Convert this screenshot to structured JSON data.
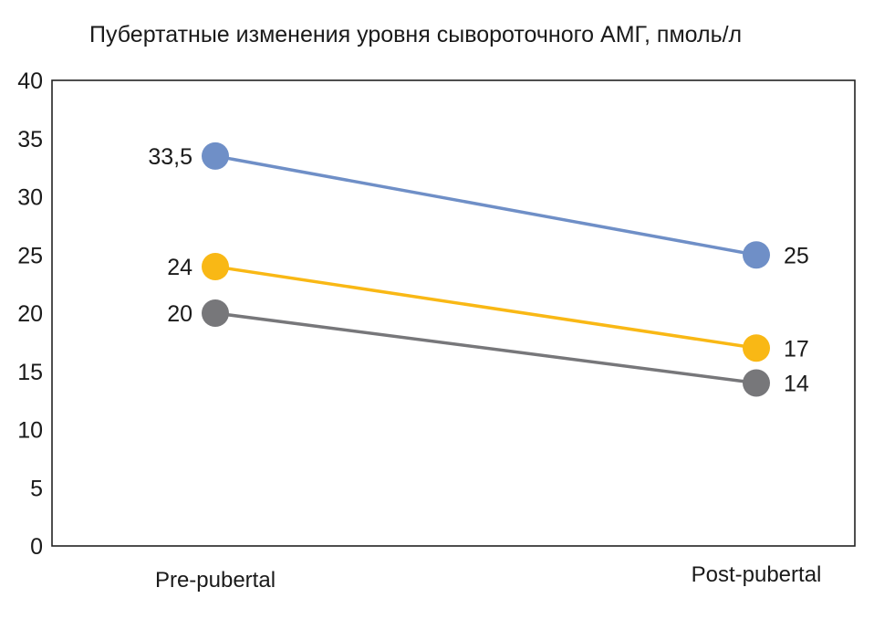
{
  "chart_data": {
    "type": "line",
    "title": "Пубертатные изменения уровня сывороточного АМГ, пмоль/л",
    "xlabel": "",
    "ylabel": "",
    "categories": [
      "Pre-pubertal",
      "Post-pubertal"
    ],
    "ylim": [
      0,
      40
    ],
    "yticks": [
      0,
      5,
      10,
      15,
      20,
      25,
      30,
      35,
      40
    ],
    "grid": false,
    "legend": "none",
    "series": [
      {
        "values": [
          33.5,
          25
        ],
        "labels": [
          "33,5",
          "25"
        ],
        "color": "#6f8fc7"
      },
      {
        "values": [
          24,
          17
        ],
        "labels": [
          "24",
          "17"
        ],
        "color": "#f9b815"
      },
      {
        "values": [
          20,
          14
        ],
        "labels": [
          "20",
          "14"
        ],
        "color": "#77777a"
      }
    ]
  }
}
